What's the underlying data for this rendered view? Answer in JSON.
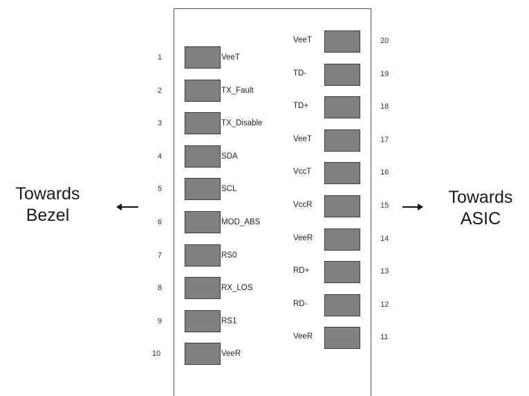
{
  "left_direction": [
    "Towards",
    "Bezel"
  ],
  "right_direction": [
    "Towards",
    "ASIC"
  ],
  "left_pins": [
    {
      "number": "1",
      "label": "VeeT"
    },
    {
      "number": "2",
      "label": "TX_Fault"
    },
    {
      "number": "3",
      "label": "TX_Disable"
    },
    {
      "number": "4",
      "label": "SDA"
    },
    {
      "number": "5",
      "label": "SCL"
    },
    {
      "number": "6",
      "label": "MOD_ABS"
    },
    {
      "number": "7",
      "label": "RS0"
    },
    {
      "number": "8",
      "label": "RX_LOS"
    },
    {
      "number": "9",
      "label": "RS1"
    },
    {
      "number": "10",
      "label": "VeeR"
    }
  ],
  "right_pins": [
    {
      "number": "20",
      "label": "VeeT"
    },
    {
      "number": "19",
      "label": "TD-"
    },
    {
      "number": "18",
      "label": "TD+"
    },
    {
      "number": "17",
      "label": "VeeT"
    },
    {
      "number": "16",
      "label": "VccT"
    },
    {
      "number": "15",
      "label": "VccR"
    },
    {
      "number": "14",
      "label": "VeeR"
    },
    {
      "number": "13",
      "label": "RD+"
    },
    {
      "number": "12",
      "label": "RD-"
    },
    {
      "number": "11",
      "label": "VeeR"
    }
  ]
}
